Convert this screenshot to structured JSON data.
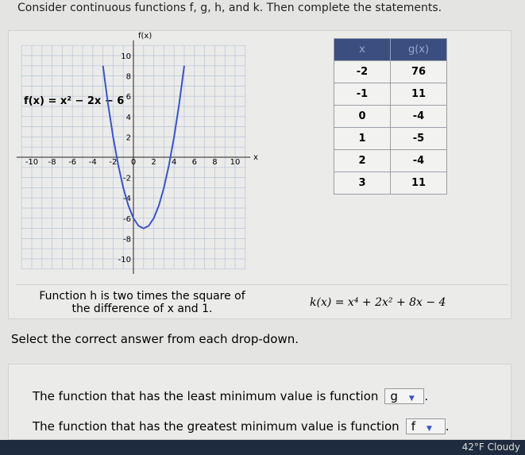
{
  "header": {
    "instruction": "Consider continuous functions f, g, h, and k. Then complete the statements."
  },
  "graph": {
    "y_axis_label": "f(x)",
    "x_axis_label": "x",
    "function_label": "f(x) = x² − 2x − 6",
    "xticks": [
      -10,
      -8,
      -6,
      -4,
      -2,
      0,
      2,
      4,
      6,
      8,
      10
    ],
    "yticks": [
      10,
      8,
      6,
      4,
      2,
      -2,
      -4,
      -6,
      -8,
      -10
    ]
  },
  "table": {
    "headers": [
      "x",
      "g(x)"
    ],
    "rows": [
      [
        "-2",
        "76"
      ],
      [
        "-1",
        "11"
      ],
      [
        "0",
        "-4"
      ],
      [
        "1",
        "-5"
      ],
      [
        "2",
        "-4"
      ],
      [
        "3",
        "11"
      ]
    ]
  },
  "function_h": "Function h is two times the square of the difference of x and 1.",
  "function_k": "k(x) = x⁴ + 2x² + 8x − 4",
  "prompt": "Select the correct answer from each drop-down.",
  "statements": [
    {
      "text": "The function that has the least minimum value is function",
      "selected": "g",
      "end": "."
    },
    {
      "text": "The function that has the greatest minimum value is function",
      "selected": "f",
      "end": "."
    }
  ],
  "taskbar": {
    "weather": "42°F Cloudy"
  }
}
